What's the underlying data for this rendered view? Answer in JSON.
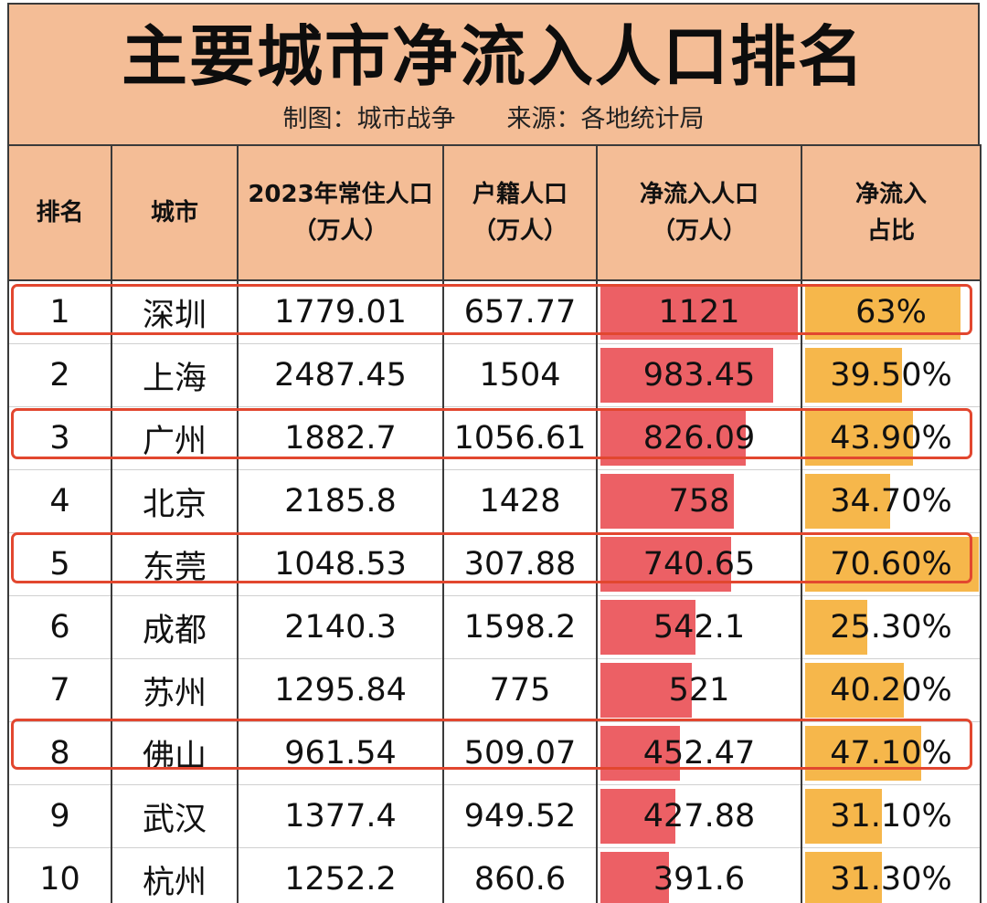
{
  "title": "主要城市净流入人口排名",
  "subtitle": {
    "chart_by": "制图：城市战争",
    "source": "来源：各地统计局"
  },
  "headers": [
    [
      "排名"
    ],
    [
      "城市"
    ],
    [
      "2023年常住人口",
      "（万人）"
    ],
    [
      "户籍人口",
      "（万人）"
    ],
    [
      "净流入人口",
      "（万人）"
    ],
    [
      "净流入",
      "占比"
    ]
  ],
  "colors": {
    "header_bg": "#f4bd96",
    "net_inflow_bar": "#ec6065",
    "ratio_bar": "#f6b74b",
    "highlight_border": "#e2472f"
  },
  "rows": [
    {
      "rank": "1",
      "city": "深圳",
      "resident": "1779.01",
      "hukou": "657.77",
      "net": "1121",
      "ratio": "63%",
      "ratio_value": 0.63,
      "highlighted": true
    },
    {
      "rank": "2",
      "city": "上海",
      "resident": "2487.45",
      "hukou": "1504",
      "net": "983.45",
      "ratio": "39.50%",
      "ratio_value": 0.395,
      "highlighted": false
    },
    {
      "rank": "3",
      "city": "广州",
      "resident": "1882.7",
      "hukou": "1056.61",
      "net": "826.09",
      "ratio": "43.90%",
      "ratio_value": 0.439,
      "highlighted": true
    },
    {
      "rank": "4",
      "city": "北京",
      "resident": "2185.8",
      "hukou": "1428",
      "net": "758",
      "ratio": "34.70%",
      "ratio_value": 0.347,
      "highlighted": false
    },
    {
      "rank": "5",
      "city": "东莞",
      "resident": "1048.53",
      "hukou": "307.88",
      "net": "740.65",
      "ratio": "70.60%",
      "ratio_value": 0.706,
      "highlighted": true
    },
    {
      "rank": "6",
      "city": "成都",
      "resident": "2140.3",
      "hukou": "1598.2",
      "net": "542.1",
      "ratio": "25.30%",
      "ratio_value": 0.253,
      "highlighted": false
    },
    {
      "rank": "7",
      "city": "苏州",
      "resident": "1295.84",
      "hukou": "775",
      "net": "521",
      "ratio": "40.20%",
      "ratio_value": 0.402,
      "highlighted": false
    },
    {
      "rank": "8",
      "city": "佛山",
      "resident": "961.54",
      "hukou": "509.07",
      "net": "452.47",
      "ratio": "47.10%",
      "ratio_value": 0.471,
      "highlighted": true
    },
    {
      "rank": "9",
      "city": "武汉",
      "resident": "1377.4",
      "hukou": "949.52",
      "net": "427.88",
      "ratio": "31.10%",
      "ratio_value": 0.311,
      "highlighted": false
    },
    {
      "rank": "10",
      "city": "杭州",
      "resident": "1252.2",
      "hukou": "860.6",
      "net": "391.6",
      "ratio": "31.30%",
      "ratio_value": 0.313,
      "highlighted": false
    }
  ]
}
